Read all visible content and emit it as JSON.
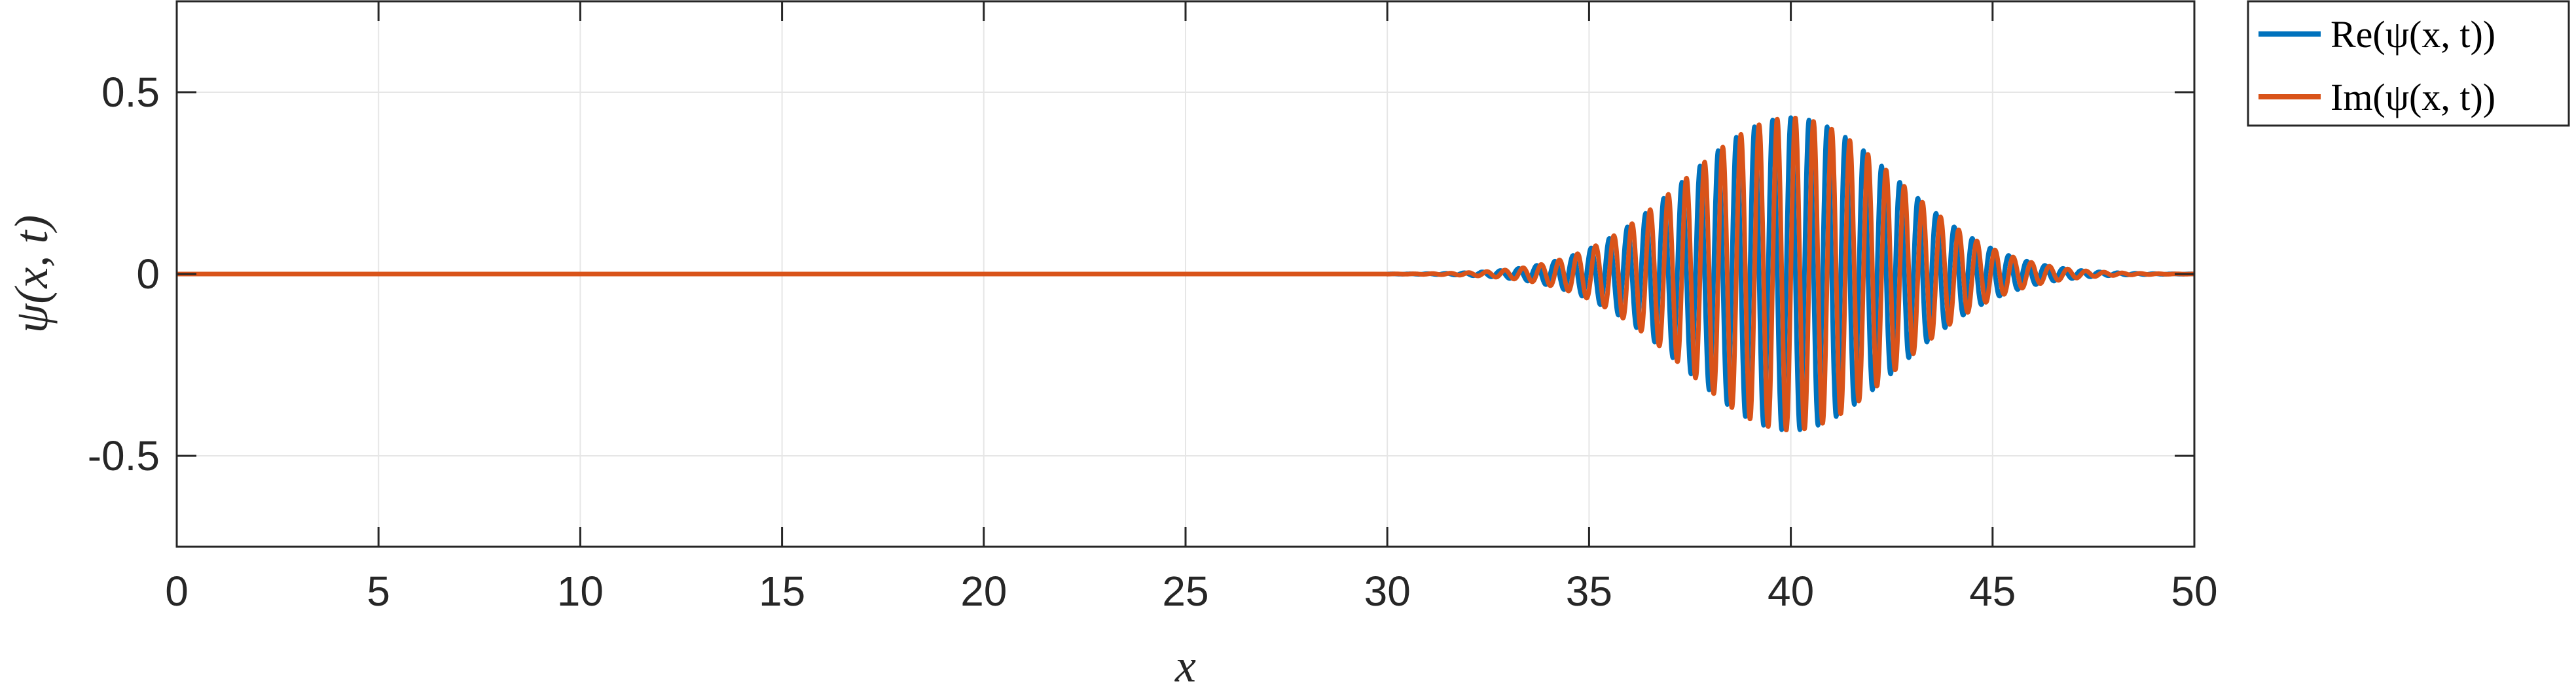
{
  "chart_data": {
    "type": "line",
    "xlabel": "x",
    "ylabel": "ψ(x, t)",
    "xlim": [
      0,
      50
    ],
    "ylim": [
      -0.75,
      0.75
    ],
    "xticks": [
      0,
      5,
      10,
      15,
      20,
      25,
      30,
      35,
      40,
      45,
      50
    ],
    "yticks": [
      -0.5,
      0,
      0.5
    ],
    "ytick_labels": [
      "-0.5",
      "0",
      "0.5"
    ],
    "grid": true,
    "legend_position": "outside-top-right",
    "wave_packet": {
      "center": 40,
      "amplitude": 0.43,
      "width": 3.7,
      "wavelength": 0.45,
      "start": 30
    },
    "series": [
      {
        "name": "Re(ψ(x, t))",
        "color": "#0072BD",
        "phase": 0
      },
      {
        "name": "Im(ψ(x, t))",
        "color": "#D95319",
        "phase": -1.5708
      }
    ]
  }
}
